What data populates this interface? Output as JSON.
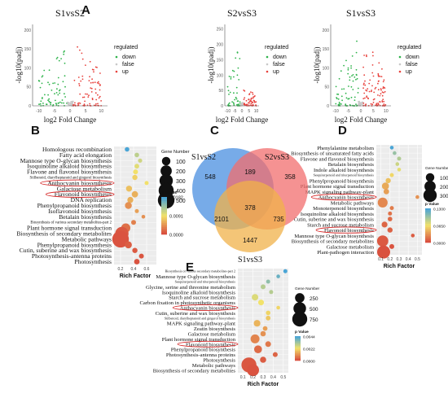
{
  "panel_letters": {
    "A": "A",
    "B": "B",
    "C": "C",
    "D": "D",
    "E": "E"
  },
  "colors": {
    "volcano": {
      "down": "#2db34a",
      "false": "#c8c8c8",
      "up": "#e8413c"
    },
    "pvalue_gradient": [
      "#4aa5d6",
      "#f2e26a",
      "#d9503f"
    ],
    "venn": {
      "S1vsS2": "#4a8fe0",
      "S2vsS3": "#f26d6d",
      "S1vsS3": "#f0b24a"
    },
    "highlight_ellipse": "#d62828"
  },
  "chart_data": [
    {
      "id": "A1",
      "type": "scatter",
      "title": "S1vsS2",
      "xlabel": "log2 Fold Change",
      "ylabel": "-log10(padj)",
      "xticks": [
        "-10",
        "-5",
        "0",
        "5",
        "10"
      ],
      "yticks": [
        "0",
        "50",
        "100",
        "150",
        "200"
      ],
      "xlim": [
        -12,
        12
      ],
      "ylim": [
        0,
        215
      ],
      "legend_title": "regulated",
      "legend": [
        "down",
        "false",
        "up"
      ],
      "groups": [
        {
          "name": "down",
          "x_range": [
            -10,
            -1
          ],
          "y_max": 200,
          "count": 70
        },
        {
          "name": "false",
          "x_range": [
            -1,
            1
          ],
          "y_max": 12,
          "count": 35
        },
        {
          "name": "up",
          "x_range": [
            1,
            10
          ],
          "y_max": 215,
          "count": 80
        }
      ]
    },
    {
      "id": "A2",
      "type": "scatter",
      "title": "S2vsS3",
      "xlabel": "log2 Fold Change",
      "ylabel": "-log10(padj)",
      "xticks": [
        "-10",
        "-5",
        "0",
        "5",
        "10"
      ],
      "yticks": [
        "0",
        "50",
        "100",
        "150",
        "200",
        "250"
      ],
      "xlim": [
        -12,
        12
      ],
      "ylim": [
        0,
        265
      ],
      "legend_title": "regulated",
      "legend": [
        "down",
        "false",
        "up"
      ],
      "groups": [
        {
          "name": "down",
          "x_range": [
            -10,
            -1
          ],
          "y_max": 230,
          "count": 45
        },
        {
          "name": "false",
          "x_range": [
            -1,
            1
          ],
          "y_max": 12,
          "count": 30
        },
        {
          "name": "up",
          "x_range": [
            1,
            10
          ],
          "y_max": 80,
          "count": 55
        }
      ]
    },
    {
      "id": "A3",
      "type": "scatter",
      "title": "S1vsS3",
      "xlabel": "log2 Fold Change",
      "ylabel": "-log10(padj)",
      "xticks": [
        "-10",
        "-5",
        "0",
        "5",
        "10"
      ],
      "yticks": [
        "0",
        "50",
        "100",
        "150",
        "200"
      ],
      "xlim": [
        -12,
        12
      ],
      "ylim": [
        0,
        215
      ],
      "legend_title": "regulated",
      "legend": [
        "down",
        "false",
        "up"
      ],
      "groups": [
        {
          "name": "down",
          "x_range": [
            -10,
            -1
          ],
          "y_max": 190,
          "count": 65
        },
        {
          "name": "false",
          "x_range": [
            -1,
            1
          ],
          "y_max": 12,
          "count": 35
        },
        {
          "name": "up",
          "x_range": [
            1,
            10
          ],
          "y_max": 215,
          "count": 95
        }
      ]
    },
    {
      "id": "B",
      "type": "scatter",
      "xlabel": "Rich Factor",
      "xticks": [
        "0.2",
        "0.4",
        "0.6"
      ],
      "xlim": [
        0.1,
        0.75
      ],
      "size_title": "Gene Number",
      "size_ticks": [
        100,
        200,
        300,
        400,
        500
      ],
      "size_max": 500,
      "color_title": "p Value",
      "color_ticks": [
        "0.0182",
        "0.0091",
        "0.0000"
      ],
      "color_max": 0.0182,
      "terms": [
        {
          "label": "Homologous recombination",
          "rich": 0.3,
          "gene": 15,
          "p": 0.0182
        },
        {
          "label": "Fatty acid elongation",
          "rich": 0.45,
          "gene": 15,
          "p": 0.012
        },
        {
          "label": "Mannose type O-glycan biosynthesis",
          "rich": 0.5,
          "gene": 12,
          "p": 0.011
        },
        {
          "label": "Isoquinoline alkaloid biosynthesis",
          "rich": 0.45,
          "gene": 18,
          "p": 0.01
        },
        {
          "label": "Flavone and flavonol biosynthesis",
          "rich": 0.43,
          "gene": 20,
          "p": 0.009
        },
        {
          "label": "Stilbenoid, diarylheptanoid and gingerol biosynthesis",
          "rich": 0.42,
          "gene": 25,
          "p": 0.008
        },
        {
          "label": "Anthocyanin biosynthesis",
          "rich": 0.6,
          "gene": 10,
          "p": 0.009
        },
        {
          "label": "Galactose metabolism",
          "rich": 0.33,
          "gene": 40,
          "p": 0.007
        },
        {
          "label": "Flavonoid biosynthesis",
          "rich": 0.42,
          "gene": 45,
          "p": 0.006
        },
        {
          "label": "DNA replication",
          "rich": 0.35,
          "gene": 40,
          "p": 0.006
        },
        {
          "label": "Phenylpropanoid biosynthesis",
          "rich": 0.32,
          "gene": 55,
          "p": 0.004
        },
        {
          "label": "Isoflavonoid biosynthesis",
          "rich": 0.45,
          "gene": 10,
          "p": 0.005
        },
        {
          "label": "Betalain biosynthesis",
          "rich": 0.55,
          "gene": 8,
          "p": 0.004
        },
        {
          "label": "Biosynthesis of various secondary metabolites-part 2",
          "rich": 0.4,
          "gene": 20,
          "p": 0.003
        },
        {
          "label": "Plant hormone signal transduction",
          "rich": 0.28,
          "gene": 120,
          "p": 0.002
        },
        {
          "label": "Biosynthesis of secondary metabolites",
          "rich": 0.22,
          "gene": 300,
          "p": 0.0005
        },
        {
          "label": "Metabolic pathways",
          "rich": 0.2,
          "gene": 500,
          "p": 0.0002
        },
        {
          "label": "Phenylpropanoid biosynthesis",
          "rich": 0.32,
          "gene": 60,
          "p": 0.0008
        },
        {
          "label": "Cutin, suberine and wax biosynthesis",
          "rich": 0.42,
          "gene": 25,
          "p": 0.0006
        },
        {
          "label": "Photosynthesis-antenna proteins",
          "rich": 0.52,
          "gene": 20,
          "p": 0.0004
        },
        {
          "label": "Photosynthesis",
          "rich": 0.45,
          "gene": 30,
          "p": 0.0002
        }
      ],
      "highlighted": [
        "Anthocyanin biosynthesis",
        "Flavonoid biosynthesis"
      ]
    },
    {
      "id": "C",
      "type": "venn",
      "sets": [
        "S1vsS2",
        "S2vsS3",
        "S1vsS3"
      ],
      "regions": [
        {
          "sets": [
            "S1vsS2"
          ],
          "value": 548
        },
        {
          "sets": [
            "S2vsS3"
          ],
          "value": 358
        },
        {
          "sets": [
            "S1vsS3"
          ],
          "value": 1447
        },
        {
          "sets": [
            "S1vsS2",
            "S2vsS3"
          ],
          "value": 189
        },
        {
          "sets": [
            "S1vsS2",
            "S1vsS3"
          ],
          "value": 2101
        },
        {
          "sets": [
            "S2vsS3",
            "S1vsS3"
          ],
          "value": 735
        },
        {
          "sets": [
            "S1vsS2",
            "S2vsS3",
            "S1vsS3"
          ],
          "value": 378
        }
      ]
    },
    {
      "id": "D",
      "type": "scatter",
      "xlabel": "Rich Factor",
      "xticks": [
        "0.1",
        "0.2",
        "0.3",
        "0.4",
        "0.5"
      ],
      "xlim": [
        0.05,
        0.55
      ],
      "size_title": "Gene Number",
      "size_ticks": [
        100,
        200,
        300
      ],
      "size_max": 300,
      "color_title": "p Value",
      "color_ticks": [
        "0.1300",
        "0.0650",
        "0.0000"
      ],
      "color_max": 0.13,
      "terms": [
        {
          "label": "Phenylalanine metabolism",
          "rich": 0.22,
          "gene": 8,
          "p": 0.13
        },
        {
          "label": "Biosynthesis of unsaturated fatty acids",
          "rich": 0.25,
          "gene": 8,
          "p": 0.1
        },
        {
          "label": "Flavone and flavonol biosynthesis",
          "rich": 0.3,
          "gene": 10,
          "p": 0.09
        },
        {
          "label": "Betalain biosynthesis",
          "rich": 0.28,
          "gene": 8,
          "p": 0.08
        },
        {
          "label": "Indole alkaloid biosynthesis",
          "rich": 0.3,
          "gene": 8,
          "p": 0.07
        },
        {
          "label": "Sesquiterpenoid and triterpenoid biosynthesis",
          "rich": 0.22,
          "gene": 10,
          "p": 0.06
        },
        {
          "label": "Phenylpropanoid biosynthesis",
          "rich": 0.18,
          "gene": 25,
          "p": 0.05
        },
        {
          "label": "Plant hormone signal transduction",
          "rich": 0.15,
          "gene": 60,
          "p": 0.04
        },
        {
          "label": "MAPK signaling pathway-plant",
          "rich": 0.16,
          "gene": 30,
          "p": 0.035
        },
        {
          "label": "Anthocyanin biosynthesis",
          "rich": 0.5,
          "gene": 8,
          "p": 0.03
        },
        {
          "label": "Metabolic pathways",
          "rich": 0.12,
          "gene": 150,
          "p": 0.025
        },
        {
          "label": "Monoterpenoid biosynthesis",
          "rich": 0.22,
          "gene": 10,
          "p": 0.02
        },
        {
          "label": "Isoquinoline alkaloid biosynthesis",
          "rich": 0.2,
          "gene": 10,
          "p": 0.015
        },
        {
          "label": "Cutin, suberine and wax biosynthesis",
          "rich": 0.2,
          "gene": 15,
          "p": 0.012
        },
        {
          "label": "Starch and sucrose metabolism",
          "rich": 0.14,
          "gene": 35,
          "p": 0.01
        },
        {
          "label": "Flavonoid biosynthesis",
          "rich": 0.2,
          "gene": 25,
          "p": 0.008
        },
        {
          "label": "Mannose type O-glycan biosynthesis",
          "rich": 0.45,
          "gene": 8,
          "p": 0.006
        },
        {
          "label": "Biosynthesis of secondary metabolites",
          "rich": 0.12,
          "gene": 200,
          "p": 0.004
        },
        {
          "label": "Galactose metabolism",
          "rich": 0.22,
          "gene": 20,
          "p": 0.002
        },
        {
          "label": "Plant-pathogen interaction",
          "rich": 0.13,
          "gene": 280,
          "p": 0.0005
        }
      ],
      "highlighted": [
        "Anthocyanin biosynthesis",
        "Flavonoid biosynthesis"
      ]
    },
    {
      "id": "E",
      "type": "scatter",
      "xlabel": "Rich Factor",
      "xticks": [
        "0.1",
        "0.2",
        "0.3",
        "0.4",
        "0.5"
      ],
      "xlim": [
        0.05,
        0.55
      ],
      "size_title": "Gene Number",
      "size_ticks": [
        250,
        500,
        750
      ],
      "size_max": 750,
      "color_title": "p Value",
      "color_ticks": [
        "0.0044",
        "0.0022",
        "0.0000"
      ],
      "color_max": 0.0044,
      "terms": [
        {
          "label": "Biosynthesis of various secondary metabolites-part 2",
          "rich": 0.52,
          "gene": 20,
          "p": 0.0044
        },
        {
          "label": "Mannose type O-glycan biosynthesis",
          "rich": 0.45,
          "gene": 15,
          "p": 0.004
        },
        {
          "label": "Sesquiterpenoid and triterpenoid biosynthesis",
          "rich": 0.35,
          "gene": 20,
          "p": 0.0035
        },
        {
          "label": "Glycine, serine and threonine metabolism",
          "rich": 0.3,
          "gene": 40,
          "p": 0.003
        },
        {
          "label": "Isoquinoline alkaloid biosynthesis",
          "rich": 0.38,
          "gene": 20,
          "p": 0.003
        },
        {
          "label": "Starch and sucrose metabolism",
          "rich": 0.22,
          "gene": 90,
          "p": 0.0025
        },
        {
          "label": "Carbon fixation in photosynthetic organisms",
          "rich": 0.28,
          "gene": 60,
          "p": 0.0022
        },
        {
          "label": "Anthocyanin biosynthesis",
          "rich": 0.45,
          "gene": 15,
          "p": 0.002
        },
        {
          "label": "Cutin, suberine and wax biosynthesis",
          "rich": 0.35,
          "gene": 30,
          "p": 0.002
        },
        {
          "label": "Stilbenoid, diarylheptanoid and gingerol biosynthesis",
          "rich": 0.35,
          "gene": 35,
          "p": 0.0018
        },
        {
          "label": "MAPK signaling pathway-plant",
          "rich": 0.24,
          "gene": 100,
          "p": 0.0015
        },
        {
          "label": "Zeatin biosynthesis",
          "rich": 0.32,
          "gene": 35,
          "p": 0.0012
        },
        {
          "label": "Galactose metabolism",
          "rich": 0.3,
          "gene": 50,
          "p": 0.001
        },
        {
          "label": "Plant hormone signal transduction",
          "rich": 0.22,
          "gene": 220,
          "p": 0.0008
        },
        {
          "label": "Flavonoid biosynthesis",
          "rich": 0.35,
          "gene": 60,
          "p": 0.0006
        },
        {
          "label": "Phenylpropanoid biosynthesis",
          "rich": 0.25,
          "gene": 150,
          "p": 0.0004
        },
        {
          "label": "Photosynthesis-antenna proteins",
          "rich": 0.42,
          "gene": 40,
          "p": 0.0003
        },
        {
          "label": "Photosynthesis",
          "rich": 0.3,
          "gene": 80,
          "p": 0.0002
        },
        {
          "label": "Metabolic pathways",
          "rich": 0.16,
          "gene": 750,
          "p": 0.0001
        },
        {
          "label": "Biosynthesis of secondary metabolites",
          "rich": 0.2,
          "gene": 450,
          "p": 5e-05
        }
      ],
      "highlighted": [
        "Anthocyanin biosynthesis",
        "Flavonoid biosynthesis"
      ]
    }
  ]
}
